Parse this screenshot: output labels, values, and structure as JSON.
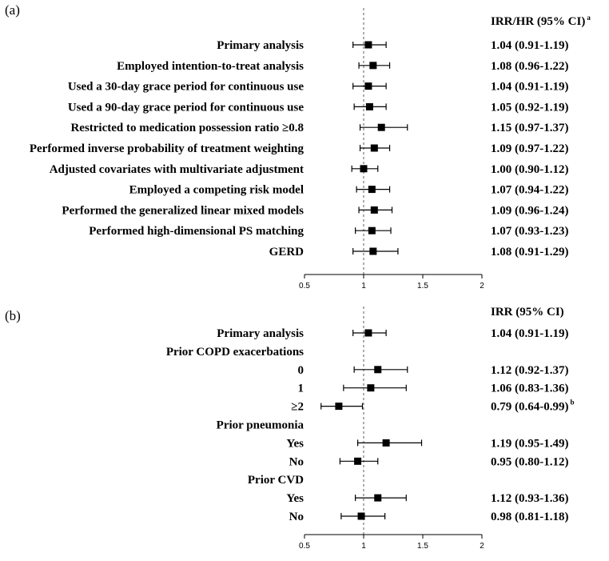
{
  "chart_data": [
    {
      "type": "forest",
      "panel_label": "(a)",
      "header": "IRR/HR (95% CI)",
      "header_superscript": "a",
      "null_value": 1,
      "xlim": [
        0.5,
        2
      ],
      "xticks": [
        "0.5",
        "1",
        "1.5",
        "2"
      ],
      "rows": [
        {
          "label": "Primary analysis",
          "est": 1.04,
          "lo": 0.91,
          "hi": 1.19,
          "ci_text": "1.04 (0.91-1.19)"
        },
        {
          "label": "Employed intention-to-treat analysis",
          "est": 1.08,
          "lo": 0.96,
          "hi": 1.22,
          "ci_text": "1.08 (0.96-1.22)"
        },
        {
          "label": "Used a 30-day grace period for continuous use",
          "est": 1.04,
          "lo": 0.91,
          "hi": 1.19,
          "ci_text": "1.04 (0.91-1.19)"
        },
        {
          "label": "Used a 90-day grace period for continuous use",
          "est": 1.05,
          "lo": 0.92,
          "hi": 1.19,
          "ci_text": "1.05 (0.92-1.19)"
        },
        {
          "label": "Restricted to medication possession ratio ≥0.8",
          "est": 1.15,
          "lo": 0.97,
          "hi": 1.37,
          "ci_text": "1.15 (0.97-1.37)"
        },
        {
          "label": "Performed inverse probability of treatment weighting",
          "est": 1.09,
          "lo": 0.97,
          "hi": 1.22,
          "ci_text": "1.09 (0.97-1.22)"
        },
        {
          "label": "Adjusted covariates with multivariate adjustment",
          "est": 1.0,
          "lo": 0.9,
          "hi": 1.12,
          "ci_text": "1.00 (0.90-1.12)"
        },
        {
          "label": "Employed a competing risk model",
          "est": 1.07,
          "lo": 0.94,
          "hi": 1.22,
          "ci_text": "1.07 (0.94-1.22)"
        },
        {
          "label": "Performed the generalized linear mixed models",
          "est": 1.09,
          "lo": 0.96,
          "hi": 1.24,
          "ci_text": "1.09 (0.96-1.24)"
        },
        {
          "label": "Performed high-dimensional PS matching",
          "est": 1.07,
          "lo": 0.93,
          "hi": 1.23,
          "ci_text": "1.07 (0.93-1.23)"
        },
        {
          "label": "GERD",
          "est": 1.08,
          "lo": 0.91,
          "hi": 1.29,
          "ci_text": "1.08 (0.91-1.29)"
        }
      ]
    },
    {
      "type": "forest",
      "panel_label": "(b)",
      "header": "IRR (95% CI)",
      "null_value": 1,
      "xlim": [
        0.5,
        2
      ],
      "xticks": [
        "0.5",
        "1",
        "1.5",
        "2"
      ],
      "rows": [
        {
          "label": "Primary analysis",
          "est": 1.04,
          "lo": 0.91,
          "hi": 1.19,
          "ci_text": "1.04 (0.91-1.19)"
        },
        {
          "label": "Prior COPD exacerbations",
          "group": true
        },
        {
          "label": "0",
          "est": 1.12,
          "lo": 0.92,
          "hi": 1.37,
          "ci_text": "1.12 (0.92-1.37)"
        },
        {
          "label": "1",
          "est": 1.06,
          "lo": 0.83,
          "hi": 1.36,
          "ci_text": "1.06 (0.83-1.36)"
        },
        {
          "label": "≥2",
          "est": 0.79,
          "lo": 0.64,
          "hi": 0.99,
          "ci_text": "0.79 (0.64-0.99)",
          "ci_superscript": "b"
        },
        {
          "label": "Prior pneumonia",
          "group": true
        },
        {
          "label": "Yes",
          "est": 1.19,
          "lo": 0.95,
          "hi": 1.49,
          "ci_text": "1.19 (0.95-1.49)"
        },
        {
          "label": "No",
          "est": 0.95,
          "lo": 0.8,
          "hi": 1.12,
          "ci_text": "0.95 (0.80-1.12)"
        },
        {
          "label": "Prior CVD",
          "group": true
        },
        {
          "label": "Yes",
          "est": 1.12,
          "lo": 0.93,
          "hi": 1.36,
          "ci_text": "1.12 (0.93-1.36)"
        },
        {
          "label": "No",
          "est": 0.98,
          "lo": 0.81,
          "hi": 1.18,
          "ci_text": "0.98 (0.81-1.18)"
        }
      ]
    }
  ]
}
